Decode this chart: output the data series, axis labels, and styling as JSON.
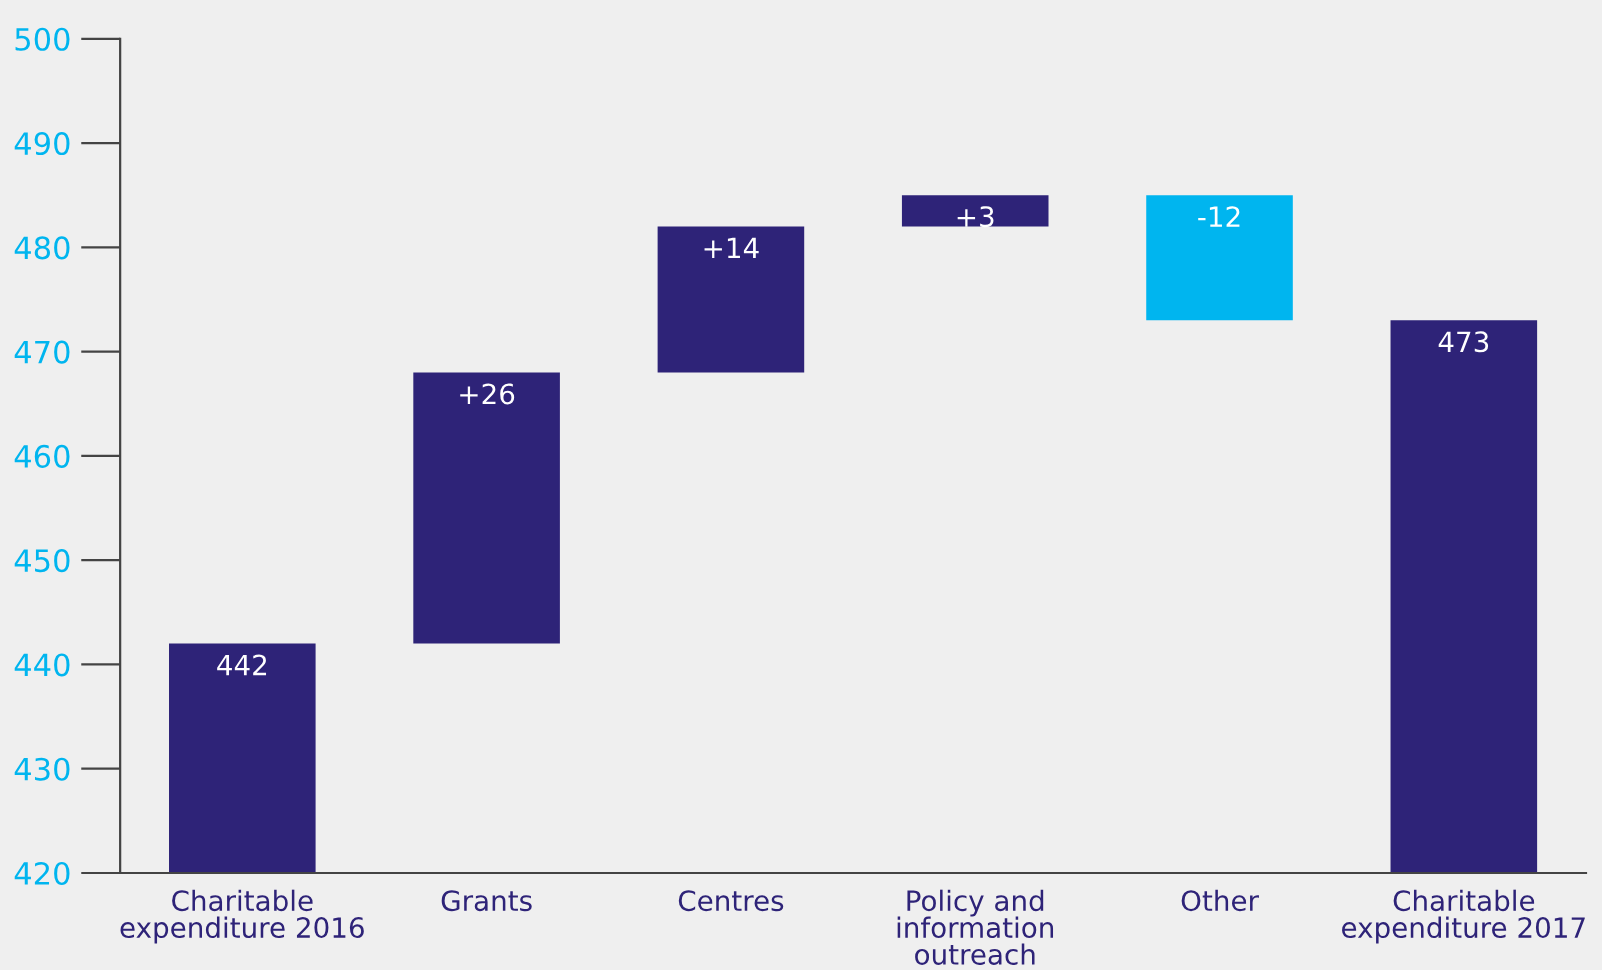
{
  "chart_data": {
    "type": "bar",
    "categories": [
      "Charitable\nexpenditure 2016",
      "Grants",
      "Centres",
      "Policy and\ninformation\noutreach",
      "Other",
      "Charitable\nexpenditure 2017"
    ],
    "values": [
      442,
      26,
      14,
      3,
      -12,
      473
    ],
    "base": [
      0,
      442,
      468,
      482,
      485,
      0
    ],
    "colors": [
      "#2e2378",
      "#2e2378",
      "#2e2378",
      "#2e2378",
      "#00b5ef",
      "#2e2378"
    ],
    "value_labels": [
      "442",
      "+26",
      "+14",
      "+3",
      "-12",
      "473"
    ],
    "ylim": [
      420,
      500
    ],
    "yticks": [
      420,
      430,
      440,
      450,
      460,
      470,
      480,
      490,
      500
    ],
    "grid": false
  }
}
